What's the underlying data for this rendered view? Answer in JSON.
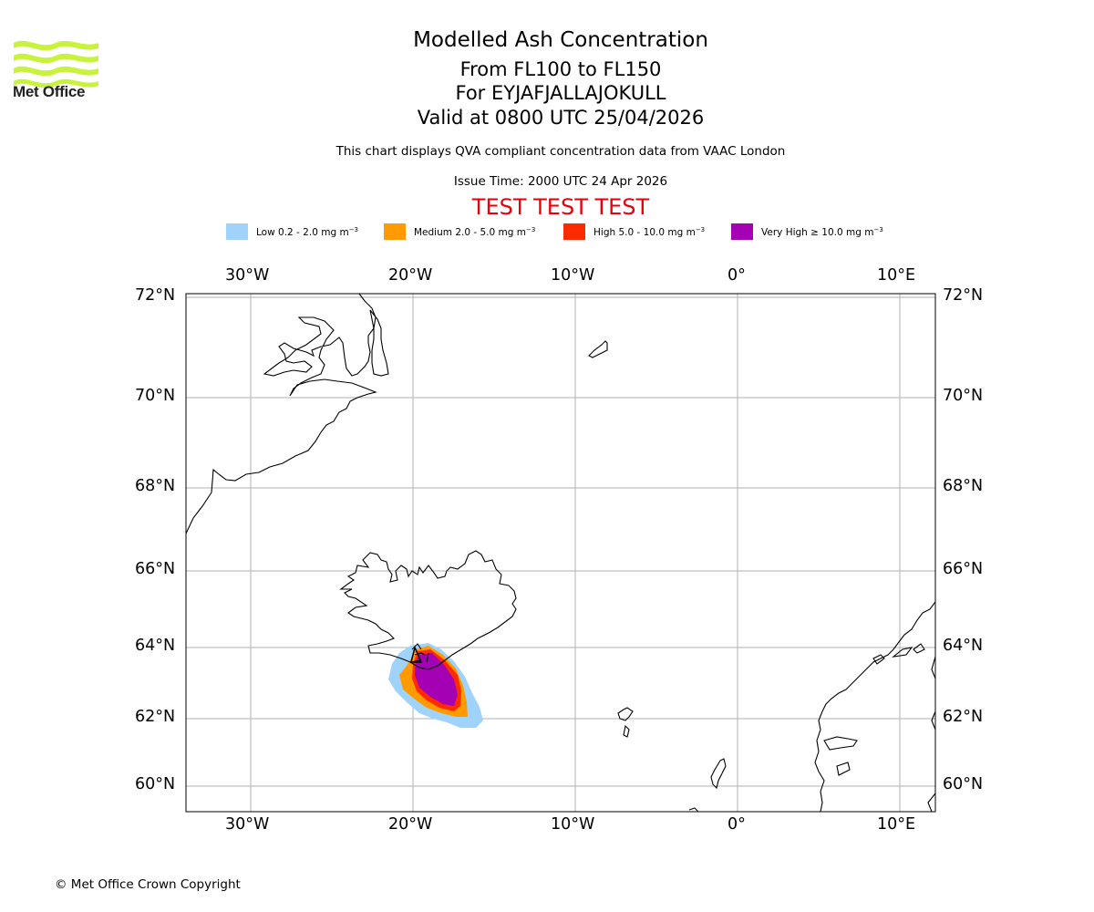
{
  "header": {
    "brand": "Met Office",
    "title": "Modelled Ash Concentration",
    "flight_levels": "From FL100 to FL150",
    "volcano": "For EYJAFJALLAJOKULL",
    "valid": "Valid at 0800 UTC 25/04/2026",
    "description": "This chart displays QVA compliant concentration data from VAAC London",
    "issue_time": "Issue Time: 2000 UTC 24 Apr 2026",
    "test_banner": "TEST TEST TEST"
  },
  "legend": [
    {
      "label": "Low 0.2 - 2.0 mg m",
      "unit_exp": "−3",
      "color": "#9fd3fb"
    },
    {
      "label": "Medium 2.0 - 5.0 mg m",
      "unit_exp": "−3",
      "color": "#ff9a00"
    },
    {
      "label": "High 5.0 - 10.0 mg m",
      "unit_exp": "−3",
      "color": "#ff2a00"
    },
    {
      "label": "Very High ≥ 10.0 mg m",
      "unit_exp": "−3",
      "color": "#a400b4"
    }
  ],
  "map": {
    "lon_labels": [
      "30°W",
      "20°W",
      "10°W",
      "0°",
      "10°E"
    ],
    "lat_labels": [
      "72°N",
      "70°N",
      "68°N",
      "66°N",
      "64°N",
      "62°N",
      "60°N"
    ],
    "features": [
      "Greenland",
      "Iceland",
      "Faroe Islands",
      "Shetland",
      "Norway",
      "Jan Mayen"
    ]
  },
  "footer": {
    "copyright": "© Met Office Crown Copyright"
  }
}
